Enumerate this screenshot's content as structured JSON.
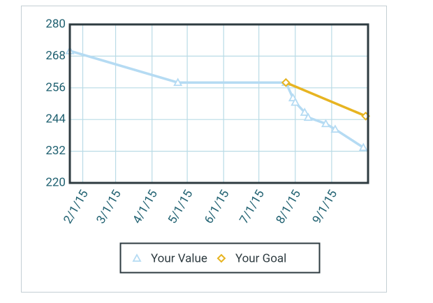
{
  "chart_data": {
    "type": "line",
    "xlim": [
      "2015-01-21",
      "2015-10-02"
    ],
    "xticks": [
      {
        "value": "2015-02-01",
        "label": "2/1/15"
      },
      {
        "value": "2015-03-01",
        "label": "3/1/15"
      },
      {
        "value": "2015-04-01",
        "label": "4/1/15"
      },
      {
        "value": "2015-05-01",
        "label": "5/1/15"
      },
      {
        "value": "2015-06-01",
        "label": "6/1/15"
      },
      {
        "value": "2015-07-01",
        "label": "7/1/15"
      },
      {
        "value": "2015-08-01",
        "label": "8/1/15"
      },
      {
        "value": "2015-09-01",
        "label": "9/1/15"
      }
    ],
    "ylim": [
      220,
      280
    ],
    "yticks": [
      220,
      232,
      244,
      256,
      268,
      280
    ],
    "grid": true,
    "series": [
      {
        "name": "Your Value",
        "color": "#b5dbf3",
        "marker": "triangle",
        "x": [
          "2015-01-21",
          "2015-04-23",
          "2015-07-24",
          "2015-07-30",
          "2015-08-01",
          "2015-08-09",
          "2015-08-12",
          "2015-08-27",
          "2015-09-04",
          "2015-09-28"
        ],
        "values": [
          270,
          258,
          258,
          252.2,
          250.5,
          246.7,
          244.8,
          242.4,
          240.3,
          233.4
        ]
      },
      {
        "name": "Your Goal",
        "color": "#e7b421",
        "marker": "diamond",
        "x": [
          "2015-07-24",
          "2015-09-30"
        ],
        "values": [
          258,
          245.3
        ]
      }
    ],
    "legend": "bottom"
  }
}
